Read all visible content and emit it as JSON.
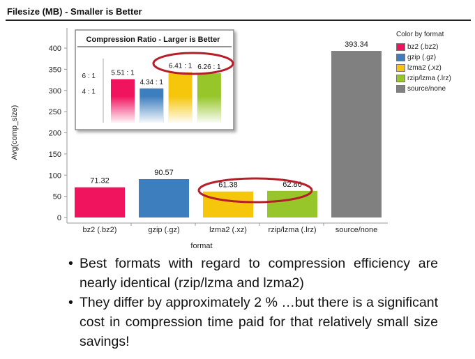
{
  "title": "Filesize (MB) - Smaller is Better",
  "chart_data": [
    {
      "type": "bar",
      "title": "",
      "xlabel": "format",
      "ylabel": "Avg(comp_size)",
      "ylim": [
        0,
        420
      ],
      "yticks": [
        0,
        50,
        100,
        150,
        200,
        250,
        300,
        350,
        400
      ],
      "grid": false,
      "categories": [
        "bz2 (.bz2)",
        "gzip (.gz)",
        "lzma2 (.xz)",
        "rzip/lzma (.lrz)",
        "source/none"
      ],
      "values": [
        71.32,
        90.57,
        61.38,
        62.86,
        393.34
      ],
      "value_labels": [
        "71.32",
        "90.57",
        "61.38",
        "62.86",
        "393.34"
      ],
      "colors": [
        "#f0145f",
        "#3d7ebf",
        "#f5c60c",
        "#96c629",
        "#808080"
      ],
      "legend": {
        "title": "Color by format",
        "placement": "right",
        "entries": [
          "bz2 (.bz2)",
          "gzip (.gz)",
          "lzma2 (.xz)",
          "rzip/lzma (.lrz)",
          "source/none"
        ]
      },
      "annotation": "highlight ellipse around lzma2 and rzip/lzma values"
    },
    {
      "type": "bar",
      "title": "Compression Ratio - Larger is Better",
      "categories": [
        "bz2",
        "gzip",
        "lzma2",
        "rzip/lzma"
      ],
      "values": [
        5.51,
        4.34,
        6.41,
        6.26
      ],
      "value_labels": [
        "5.51 : 1",
        "4.34 : 1",
        "6.41 : 1",
        "6.26 : 1"
      ],
      "ytick_labels": [
        "6 : 1",
        "4 : 1"
      ],
      "yticks": [
        6,
        4
      ],
      "ylim": [
        0,
        7
      ],
      "colors": [
        "#f0145f",
        "#3d7ebf",
        "#f5c60c",
        "#96c629"
      ],
      "annotation": "highlight ellipse around lzma2 and rzip/lzma values"
    }
  ],
  "bullets": [
    "Best formats with regard to compression efficiency are nearly identical (rzip/lzma and lzma2)",
    "They differ by approximately 2 % …but there is a significant cost in compression time paid for that relatively small size savings!"
  ],
  "bullet_symbol": "•"
}
